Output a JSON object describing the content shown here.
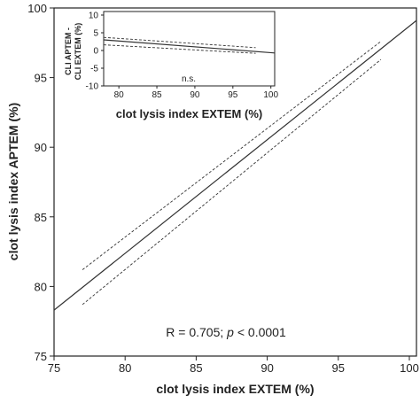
{
  "chart_data": [
    {
      "type": "line",
      "title": "",
      "xlabel": "clot lysis index EXTEM (%)",
      "ylabel": "clot lysis index APTEM (%)",
      "xlim": [
        75,
        100.5
      ],
      "ylim": [
        75,
        100
      ],
      "xticks": [
        75,
        80,
        85,
        90,
        95,
        100
      ],
      "yticks": [
        75,
        80,
        85,
        90,
        95,
        100
      ],
      "grid": false,
      "annotation_prefix": "R = 0.705; ",
      "annotation_p": "p",
      "annotation_suffix": " < 0.0001",
      "series": [
        {
          "role": "regression",
          "style": "solid",
          "x": [
            75,
            100.5
          ],
          "y": [
            78.3,
            99.1
          ]
        },
        {
          "role": "ci-upper",
          "style": "dashed",
          "x": [
            77,
            98
          ],
          "y": [
            81.2,
            97.6
          ]
        },
        {
          "role": "ci-lower",
          "style": "dashed",
          "x": [
            77,
            98
          ],
          "y": [
            78.7,
            96.3
          ]
        }
      ]
    },
    {
      "type": "line",
      "title": "",
      "xlabel": "clot lysis index EXTEM (%)",
      "ylabel_line1": "CLI APTEM -",
      "ylabel_line2": "CLI EXTEM (%)",
      "xlim": [
        78,
        100.5
      ],
      "ylim": [
        -10,
        11
      ],
      "xticks": [
        80,
        85,
        90,
        95,
        100
      ],
      "yticks": [
        -10,
        -5,
        0,
        5,
        10
      ],
      "grid": false,
      "annotation": "n.s.",
      "series": [
        {
          "role": "mean-difference",
          "style": "solid",
          "x": [
            78,
            100.5
          ],
          "y": [
            3.0,
            -0.7
          ]
        },
        {
          "role": "ci-upper",
          "style": "dashed",
          "x": [
            78,
            98
          ],
          "y": [
            3.7,
            0.8
          ]
        },
        {
          "role": "ci-lower",
          "style": "dashed",
          "x": [
            78,
            98
          ],
          "y": [
            1.6,
            -0.8
          ]
        }
      ]
    }
  ]
}
